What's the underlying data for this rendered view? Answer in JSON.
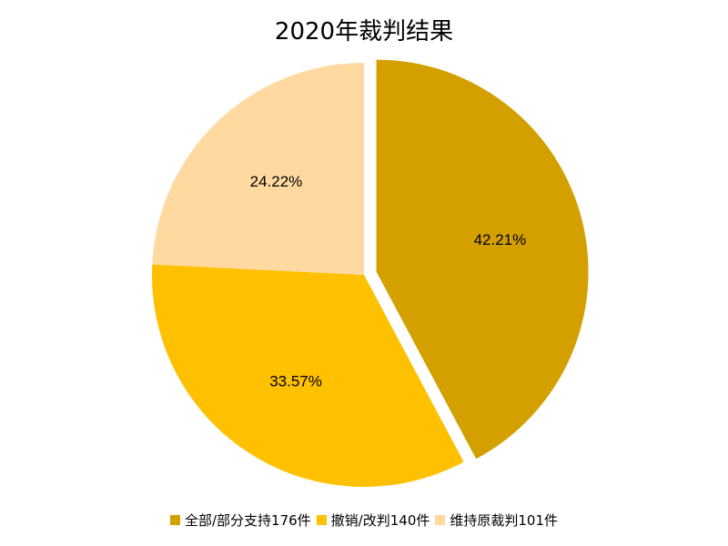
{
  "chart_data": {
    "type": "pie",
    "title": "2020年裁判结果",
    "slices": [
      {
        "legend": "全部/部分支持176件",
        "value": 176,
        "label": "42.21%",
        "color": "#D4A000",
        "exploded": true
      },
      {
        "legend": "撤销/改判140件",
        "value": 140,
        "label": "33.57%",
        "color": "#FFC000",
        "exploded": false
      },
      {
        "legend": "维持原裁判101件",
        "value": 101,
        "label": "24.22%",
        "color": "#FFD9A0",
        "exploded": false
      }
    ],
    "legend_position": "bottom"
  }
}
